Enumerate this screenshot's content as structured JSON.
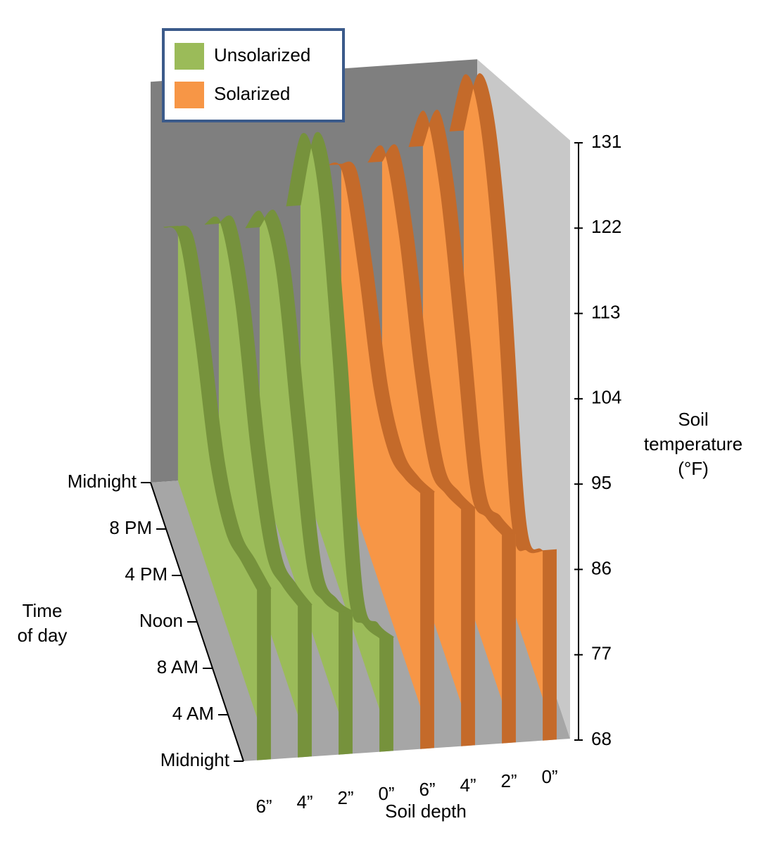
{
  "chart_data": {
    "type": "ribbon3d",
    "x": [
      "Midnight",
      "4 AM",
      "8 AM",
      "Noon",
      "4 PM",
      "8 PM",
      "Midnight"
    ],
    "x_label": [
      "Time",
      "of day"
    ],
    "depth_label": "Soil depth",
    "y_label": [
      "Soil",
      "temperature",
      "(°F)"
    ],
    "ylim": [
      68,
      131
    ],
    "yticks": [
      68,
      77,
      86,
      95,
      104,
      113,
      122,
      131
    ],
    "groups": [
      {
        "name": "Unsolarized",
        "color": "#9bbb59",
        "edge_color": "#76923c",
        "depths": [
          "6”",
          "4”",
          "2”",
          "0”"
        ],
        "values": [
          [
            86,
            85,
            84,
            88,
            100,
            110,
            108
          ],
          [
            84,
            82,
            81,
            89,
            104,
            112,
            108
          ],
          [
            83,
            80,
            79,
            92,
            108,
            113,
            107
          ],
          [
            80,
            77,
            76,
            100,
            120,
            124,
            110
          ]
        ]
      },
      {
        "name": "Solarized",
        "color": "#f79646",
        "edge_color": "#c46a2a",
        "depths": [
          "6”",
          "4”",
          "2”",
          "0”"
        ],
        "values": [
          [
            95,
            93,
            92,
            96,
            108,
            118,
            116
          ],
          [
            93,
            91,
            90,
            98,
            112,
            121,
            116
          ],
          [
            90,
            88,
            87,
            102,
            118,
            126,
            118
          ],
          [
            88,
            84,
            83,
            108,
            126,
            131,
            120
          ]
        ]
      }
    ]
  }
}
